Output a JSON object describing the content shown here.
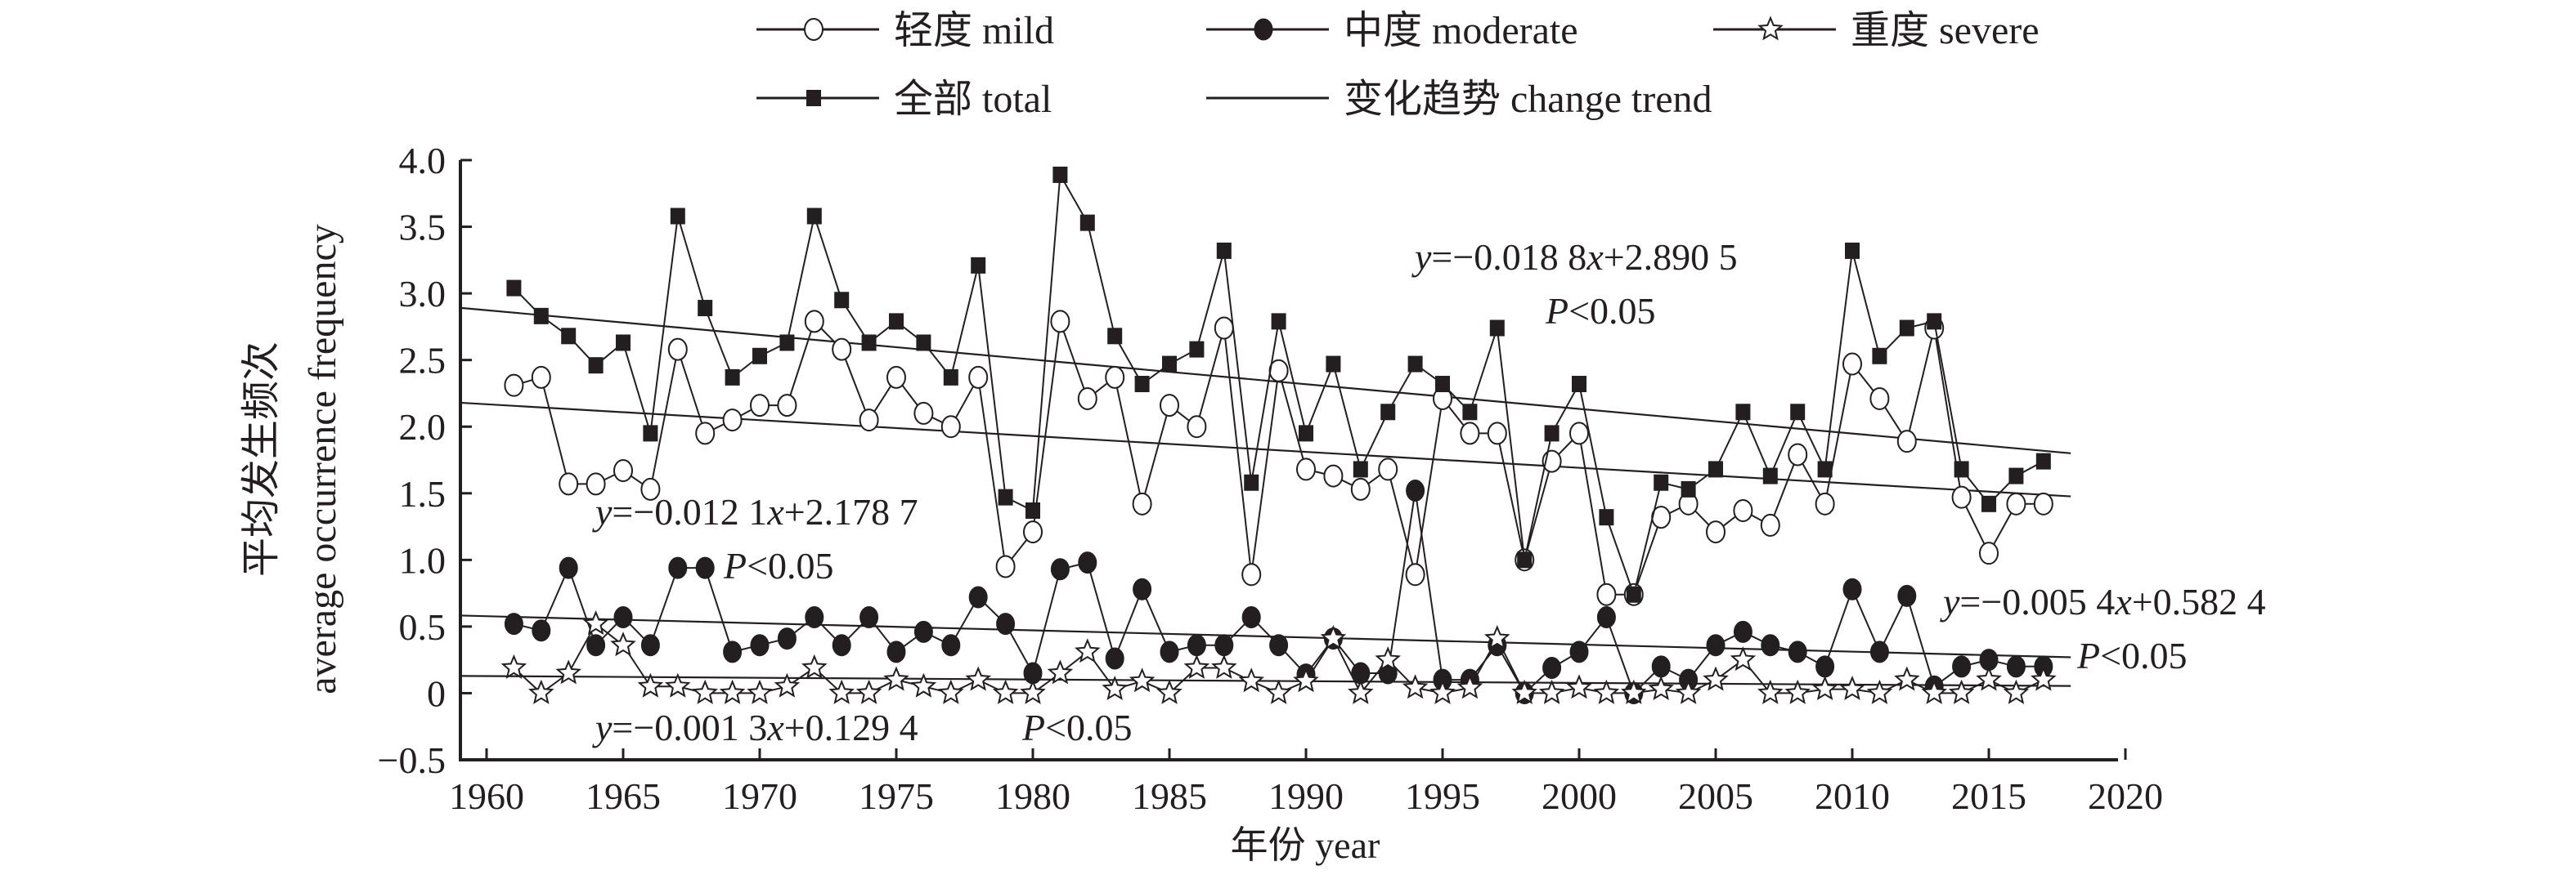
{
  "chart_data": {
    "type": "line",
    "title": "",
    "xlabel": "年份 year",
    "ylabel_cn": "平均发生频次",
    "ylabel_en": "average occurrence frequency",
    "xlim": [
      1960,
      2020
    ],
    "ylim": [
      -0.5,
      4.0
    ],
    "xticks": [
      1960,
      1965,
      1970,
      1975,
      1980,
      1985,
      1990,
      1995,
      2000,
      2005,
      2010,
      2015,
      2020
    ],
    "yticks": [
      -0.5,
      0,
      0.5,
      1.0,
      1.5,
      2.0,
      2.5,
      3.0,
      3.5,
      4.0
    ],
    "ytick_labels": [
      "−0.5",
      "0",
      "0.5",
      "1.0",
      "1.5",
      "2.0",
      "2.5",
      "3.0",
      "3.5",
      "4.0"
    ],
    "grid": false,
    "legend_position": "top-center",
    "x": [
      1961,
      1962,
      1963,
      1964,
      1965,
      1966,
      1967,
      1968,
      1969,
      1970,
      1971,
      1972,
      1973,
      1974,
      1975,
      1976,
      1977,
      1978,
      1979,
      1980,
      1981,
      1982,
      1983,
      1984,
      1985,
      1986,
      1987,
      1988,
      1989,
      1990,
      1991,
      1992,
      1993,
      1994,
      1995,
      1996,
      1997,
      1998,
      1999,
      2000,
      2001,
      2002,
      2003,
      2004,
      2005,
      2006,
      2007,
      2008,
      2009,
      2010,
      2011,
      2012,
      2013,
      2014,
      2015,
      2016,
      2017
    ],
    "series": [
      {
        "name": "轻度 mild",
        "marker": "open-circle",
        "values": [
          2.31,
          2.37,
          1.57,
          1.57,
          1.67,
          1.53,
          2.58,
          1.95,
          2.05,
          2.16,
          2.16,
          2.79,
          2.58,
          2.05,
          2.37,
          2.1,
          2.0,
          2.37,
          0.95,
          1.21,
          2.79,
          2.21,
          2.37,
          1.42,
          2.16,
          2.0,
          2.74,
          0.89,
          2.42,
          1.68,
          1.63,
          1.53,
          1.68,
          0.89,
          2.21,
          1.95,
          1.95,
          1.0,
          1.74,
          1.95,
          0.74,
          0.74,
          1.32,
          1.42,
          1.21,
          1.37,
          1.26,
          1.79,
          1.42,
          2.47,
          2.21,
          1.89,
          2.74,
          1.47,
          1.05,
          1.42,
          1.42
        ]
      },
      {
        "name": "中度 moderate",
        "marker": "filled-circle",
        "values": [
          0.52,
          0.47,
          0.94,
          0.36,
          0.57,
          0.36,
          0.94,
          0.94,
          0.31,
          0.36,
          0.41,
          0.57,
          0.36,
          0.57,
          0.31,
          0.46,
          0.36,
          0.72,
          0.52,
          0.15,
          0.93,
          0.98,
          0.26,
          0.78,
          0.31,
          0.36,
          0.36,
          0.57,
          0.36,
          0.14,
          0.41,
          0.15,
          0.15,
          1.52,
          0.1,
          0.1,
          0.36,
          0,
          0.19,
          0.31,
          0.57,
          0,
          0.2,
          0.1,
          0.36,
          0.46,
          0.36,
          0.31,
          0.2,
          0.78,
          0.31,
          0.73,
          0.05,
          0.2,
          0.25,
          0.2,
          0.2
        ]
      },
      {
        "name": "重度 severe",
        "marker": "open-star",
        "values": [
          0.19,
          0,
          0.15,
          0.52,
          0.36,
          0.05,
          0.05,
          0,
          0,
          0,
          0.05,
          0.19,
          0,
          0,
          0.1,
          0.05,
          0,
          0.1,
          0,
          0,
          0.15,
          0.31,
          0.03,
          0.09,
          0,
          0.19,
          0.19,
          0.09,
          0,
          0.09,
          0.41,
          0,
          0.25,
          0.04,
          0,
          0.04,
          0.41,
          0,
          0,
          0.04,
          0,
          0,
          0.03,
          0,
          0.1,
          0.25,
          0,
          0,
          0.03,
          0.03,
          0,
          0.1,
          0,
          0,
          0.1,
          0,
          0.1
        ]
      },
      {
        "name": "全部 total",
        "marker": "filled-square",
        "values": [
          3.04,
          2.83,
          2.68,
          2.46,
          2.63,
          1.95,
          3.58,
          2.89,
          2.37,
          2.53,
          2.63,
          3.58,
          2.95,
          2.63,
          2.79,
          2.63,
          2.37,
          3.21,
          1.47,
          1.37,
          3.89,
          3.53,
          2.68,
          2.32,
          2.47,
          2.58,
          3.32,
          1.58,
          2.79,
          1.95,
          2.47,
          1.68,
          2.11,
          2.47,
          2.32,
          2.11,
          2.74,
          1.0,
          1.95,
          2.32,
          1.32,
          0.74,
          1.58,
          1.53,
          1.68,
          2.11,
          1.63,
          2.11,
          1.68,
          3.32,
          2.53,
          2.74,
          2.79,
          1.68,
          1.42,
          1.63,
          1.74
        ]
      }
    ],
    "trend_legend": "变化趋势 change trend",
    "trends": [
      {
        "series": "全部 total",
        "slope": -0.0188,
        "intercept": 2.8905,
        "eq_parts": [
          "y",
          "=−0.018 8",
          "x",
          "+2.890 5"
        ],
        "p_italic": "P",
        "p_text": "<0.05"
      },
      {
        "series": "轻度 mild",
        "slope": -0.0121,
        "intercept": 2.1787,
        "eq_parts": [
          "y",
          "=−0.012 1",
          "x",
          "+2.178 7"
        ],
        "p_italic": "P",
        "p_text": "<0.05"
      },
      {
        "series": "中度 moderate",
        "slope": -0.0054,
        "intercept": 0.5824,
        "eq_parts": [
          "y",
          "=−0.005 4",
          "x",
          "+0.582 4"
        ],
        "p_italic": "P",
        "p_text": "<0.05"
      },
      {
        "series": "重度 severe",
        "slope": -0.0013,
        "intercept": 0.1294,
        "eq_parts": [
          "y",
          "=−0.001 3",
          "x",
          "+0.129 4"
        ],
        "p_italic": "P",
        "p_text": "<0.05"
      }
    ],
    "colors": {
      "ink": "#231f20",
      "background": "#ffffff"
    }
  }
}
